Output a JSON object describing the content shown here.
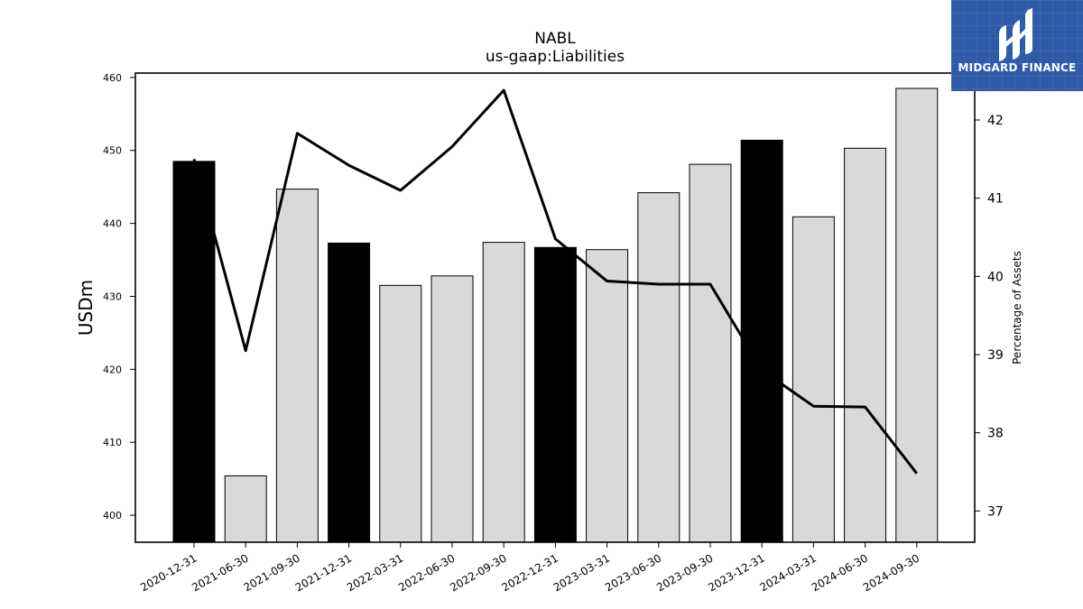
{
  "chart_data": {
    "type": "bar",
    "title": "NABL",
    "subtitle": "us-gaap:Liabilities",
    "ylabel": "USDm",
    "y2label": "Percentage of Assets",
    "categories": [
      "2020-12-31",
      "2021-06-30",
      "2021-09-30",
      "2021-12-31",
      "2022-03-31",
      "2022-06-30",
      "2022-09-30",
      "2022-12-31",
      "2023-03-31",
      "2023-06-30",
      "2023-09-30",
      "2023-12-31",
      "2024-03-31",
      "2024-06-30",
      "2024-09-30"
    ],
    "series": [
      {
        "type": "bar",
        "axis": "left",
        "values": [
          448.5,
          405.4,
          444.7,
          437.3,
          431.5,
          432.8,
          437.4,
          436.7,
          436.4,
          444.2,
          448.1,
          451.4,
          440.9,
          450.3,
          458.5
        ],
        "highlight": [
          true,
          false,
          false,
          true,
          false,
          false,
          false,
          true,
          false,
          false,
          false,
          true,
          false,
          false,
          false
        ],
        "color": "#d9d9d9",
        "highlight_color": "#000000"
      },
      {
        "type": "line",
        "axis": "right",
        "values": [
          41.5,
          39.05,
          41.83,
          41.42,
          41.1,
          41.66,
          42.38,
          40.48,
          39.94,
          39.9,
          39.9,
          38.8,
          38.34,
          38.33,
          37.48
        ],
        "color": "#000000"
      }
    ],
    "ylim": [
      396.3,
      460.6
    ],
    "y2lim": [
      36.6,
      42.6
    ],
    "yticks": [
      400,
      410,
      420,
      430,
      440,
      450,
      460
    ],
    "y2ticks": [
      37,
      38,
      39,
      40,
      41,
      42
    ],
    "grid": false
  },
  "logo": {
    "text": "MIDGARD FINANCE"
  }
}
